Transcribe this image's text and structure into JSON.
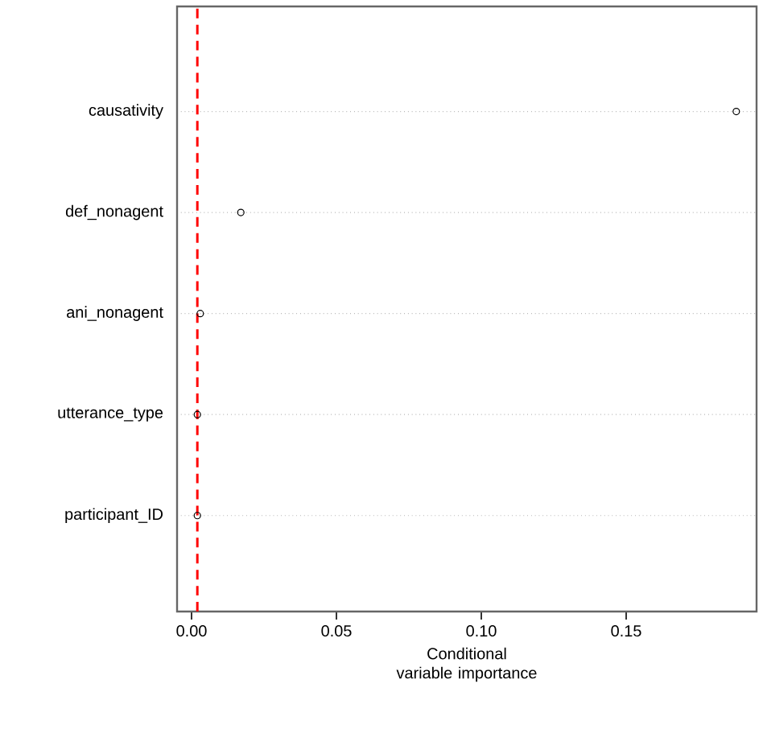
{
  "chart_data": {
    "type": "scatter",
    "xlabel": "Conditional variable importance",
    "categories": [
      "causativity",
      "def_nonagent",
      "ani_nonagent",
      "utterance_type",
      "participant_ID"
    ],
    "values": [
      0.188,
      0.017,
      0.003,
      0.002,
      0.002
    ],
    "orientation": "horizontal",
    "color": "#000000",
    "marker": "circle",
    "grid": "y",
    "xlim": [
      -0.005,
      0.195
    ],
    "xticks": [
      {
        "value": 0,
        "label": "0.00"
      },
      {
        "value": 0.05,
        "label": "0.05"
      },
      {
        "value": 0.1,
        "label": "0.10"
      },
      {
        "value": 0.15,
        "label": "0.15"
      }
    ],
    "ref_lines": [
      {
        "axis": "x",
        "value": 0.002,
        "color": "#ff0000",
        "line_style": "dashed"
      }
    ]
  }
}
